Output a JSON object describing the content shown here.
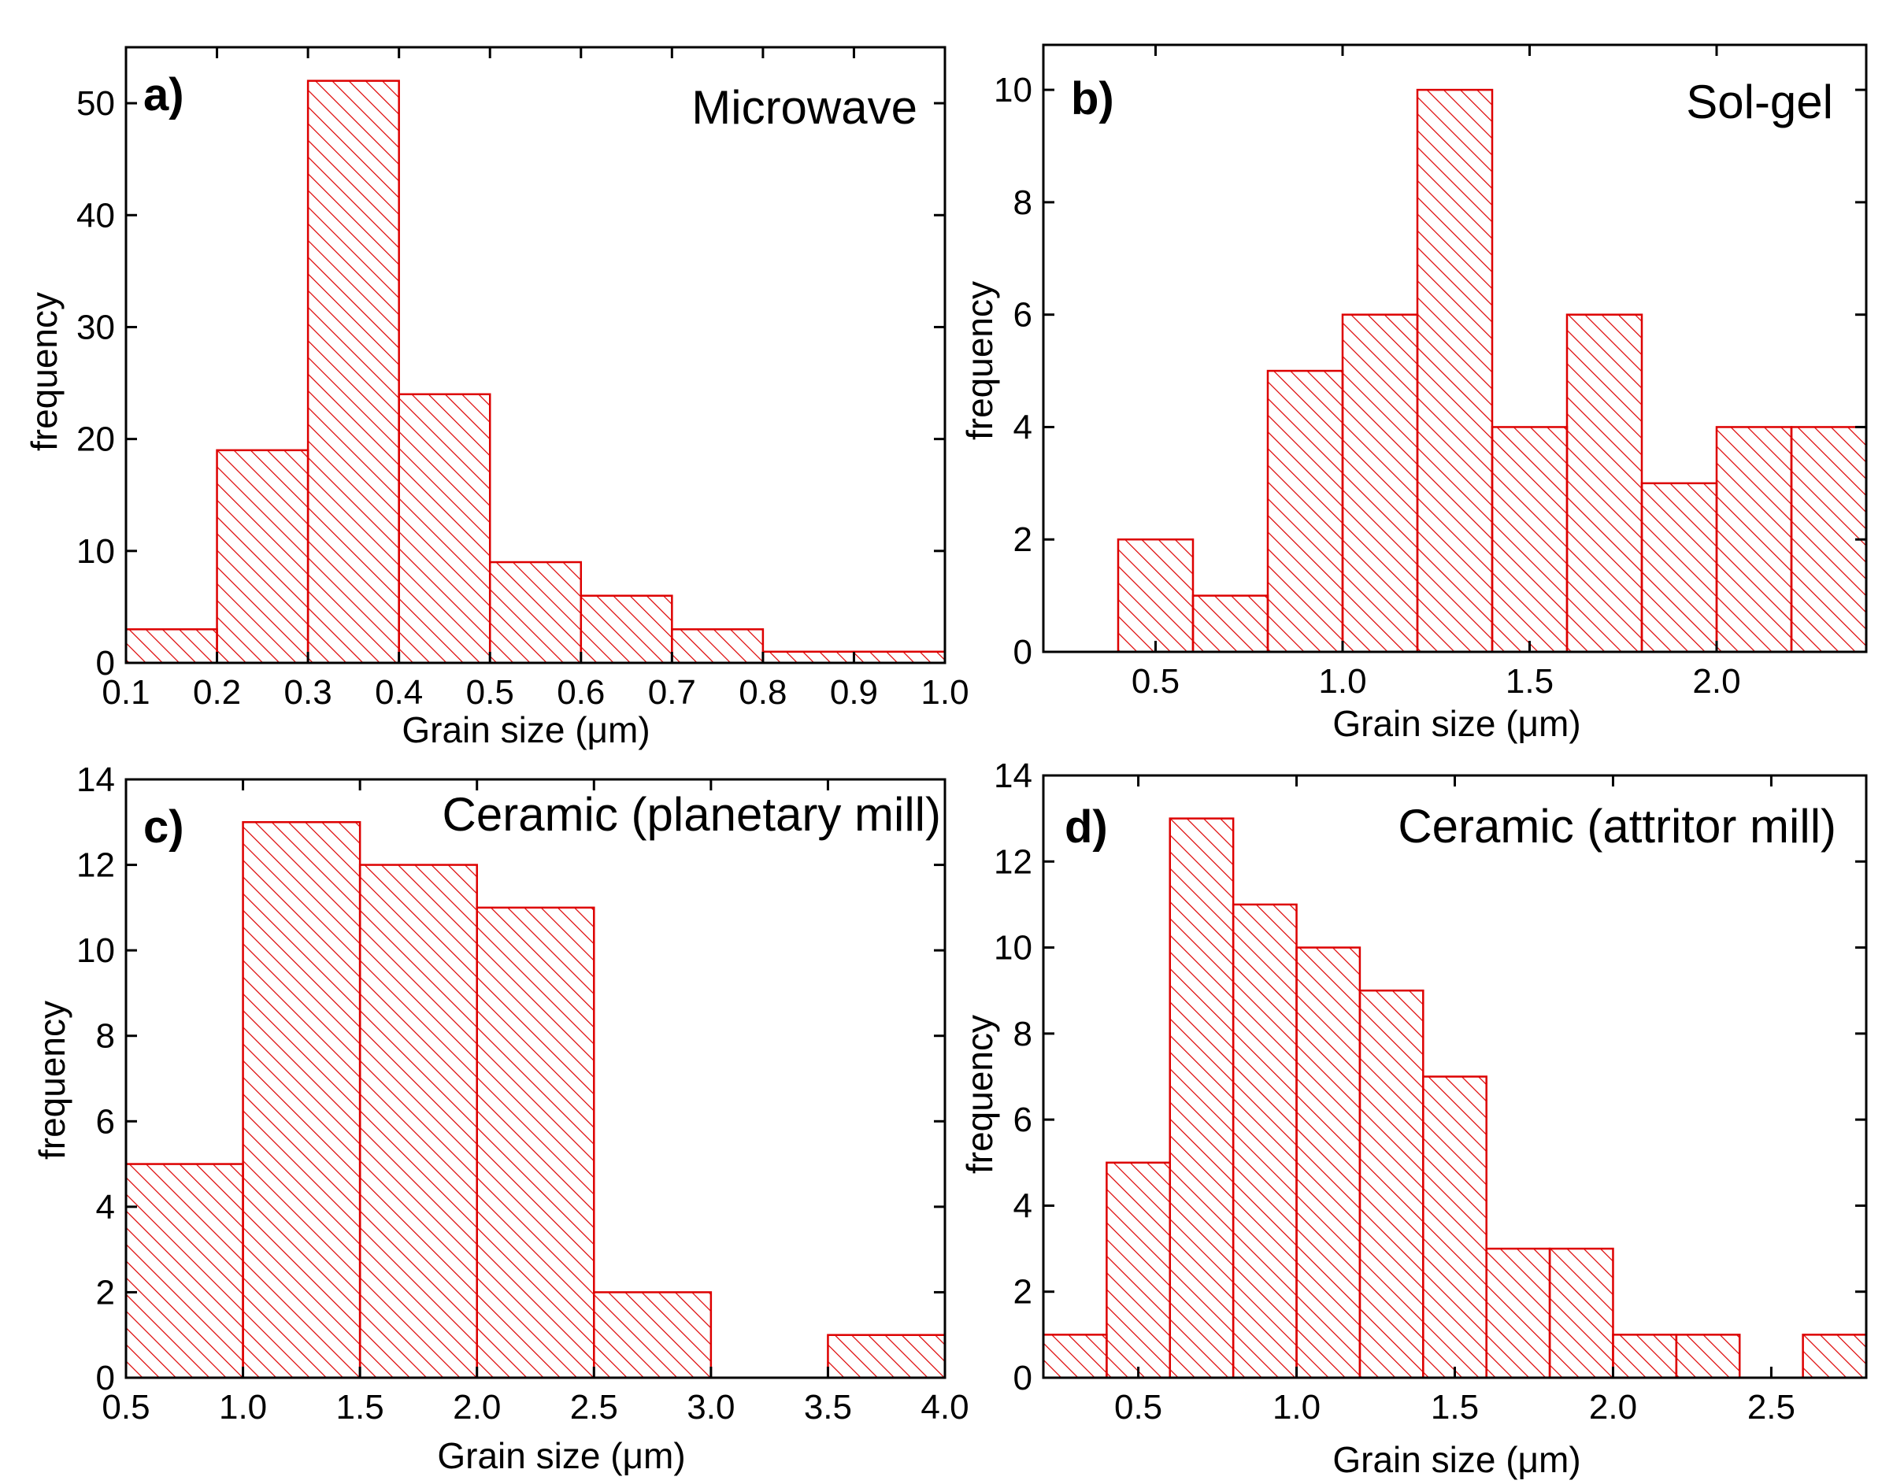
{
  "chart_data": [
    {
      "panel": "a)",
      "title": "Microwave",
      "type": "bar",
      "xlabel": "Grain size (μm)",
      "ylabel": "frequency",
      "xlim": [
        0.1,
        1.0
      ],
      "ylim": [
        0,
        55
      ],
      "xticks": [
        "0.1",
        "0.2",
        "0.3",
        "0.4",
        "0.5",
        "0.6",
        "0.7",
        "0.8",
        "0.9",
        "1.0"
      ],
      "yticks": [
        "0",
        "10",
        "20",
        "30",
        "40",
        "50"
      ],
      "bins": [
        {
          "start": 0.1,
          "end": 0.2,
          "value": 3
        },
        {
          "start": 0.2,
          "end": 0.3,
          "value": 19
        },
        {
          "start": 0.3,
          "end": 0.4,
          "value": 52
        },
        {
          "start": 0.4,
          "end": 0.5,
          "value": 24
        },
        {
          "start": 0.5,
          "end": 0.6,
          "value": 9
        },
        {
          "start": 0.6,
          "end": 0.7,
          "value": 6
        },
        {
          "start": 0.7,
          "end": 0.8,
          "value": 3
        },
        {
          "start": 0.8,
          "end": 0.9,
          "value": 1
        },
        {
          "start": 0.9,
          "end": 1.0,
          "value": 1
        }
      ]
    },
    {
      "panel": "b)",
      "title": "Sol-gel",
      "type": "bar",
      "xlabel": "Grain size (μm)",
      "ylabel": "frequency",
      "xlim": [
        0.2,
        2.4
      ],
      "ylim": [
        0,
        10.8
      ],
      "xticks": [
        "0.5",
        "1.0",
        "1.5",
        "2.0"
      ],
      "yticks": [
        "0",
        "2",
        "4",
        "6",
        "8",
        "10"
      ],
      "bins": [
        {
          "start": 0.4,
          "end": 0.6,
          "value": 2
        },
        {
          "start": 0.6,
          "end": 0.8,
          "value": 1
        },
        {
          "start": 0.8,
          "end": 1.0,
          "value": 5
        },
        {
          "start": 1.0,
          "end": 1.2,
          "value": 6
        },
        {
          "start": 1.2,
          "end": 1.4,
          "value": 10
        },
        {
          "start": 1.4,
          "end": 1.6,
          "value": 4
        },
        {
          "start": 1.6,
          "end": 1.8,
          "value": 6
        },
        {
          "start": 1.8,
          "end": 2.0,
          "value": 3
        },
        {
          "start": 2.0,
          "end": 2.2,
          "value": 4
        },
        {
          "start": 2.2,
          "end": 2.4,
          "value": 4
        }
      ]
    },
    {
      "panel": "c)",
      "title": "Ceramic (planetary mill)",
      "type": "bar",
      "xlabel": "Grain size (μm)",
      "ylabel": "frequency",
      "xlim": [
        0.5,
        4.0
      ],
      "ylim": [
        0,
        14
      ],
      "xticks": [
        "0.5",
        "1.0",
        "1.5",
        "2.0",
        "2.5",
        "3.0",
        "3.5",
        "4.0"
      ],
      "yticks": [
        "0",
        "2",
        "4",
        "6",
        "8",
        "10",
        "12",
        "14"
      ],
      "bins": [
        {
          "start": 0.5,
          "end": 1.0,
          "value": 5
        },
        {
          "start": 1.0,
          "end": 1.5,
          "value": 13
        },
        {
          "start": 1.5,
          "end": 2.0,
          "value": 12
        },
        {
          "start": 2.0,
          "end": 2.5,
          "value": 11
        },
        {
          "start": 2.5,
          "end": 3.0,
          "value": 2
        },
        {
          "start": 3.5,
          "end": 4.0,
          "value": 1
        }
      ]
    },
    {
      "panel": "d)",
      "title": "Ceramic (attritor mill)",
      "type": "bar",
      "xlabel": "Grain size (μm)",
      "ylabel": "frequency",
      "xlim": [
        0.2,
        2.8
      ],
      "ylim": [
        0,
        14
      ],
      "xticks": [
        "0.5",
        "1.0",
        "1.5",
        "2.0",
        "2.5"
      ],
      "yticks": [
        "0",
        "2",
        "4",
        "6",
        "8",
        "10",
        "12",
        "14"
      ],
      "bins": [
        {
          "start": 0.2,
          "end": 0.4,
          "value": 1
        },
        {
          "start": 0.4,
          "end": 0.6,
          "value": 5
        },
        {
          "start": 0.6,
          "end": 0.8,
          "value": 13
        },
        {
          "start": 0.8,
          "end": 1.0,
          "value": 11
        },
        {
          "start": 1.0,
          "end": 1.2,
          "value": 10
        },
        {
          "start": 1.2,
          "end": 1.4,
          "value": 9
        },
        {
          "start": 1.4,
          "end": 1.6,
          "value": 7
        },
        {
          "start": 1.6,
          "end": 1.8,
          "value": 3
        },
        {
          "start": 1.8,
          "end": 2.0,
          "value": 3
        },
        {
          "start": 2.0,
          "end": 2.2,
          "value": 1
        },
        {
          "start": 2.2,
          "end": 2.4,
          "value": 1
        },
        {
          "start": 2.6,
          "end": 2.8,
          "value": 1
        }
      ]
    }
  ],
  "colors": {
    "bar": "#dd0000",
    "axis": "#000000"
  }
}
